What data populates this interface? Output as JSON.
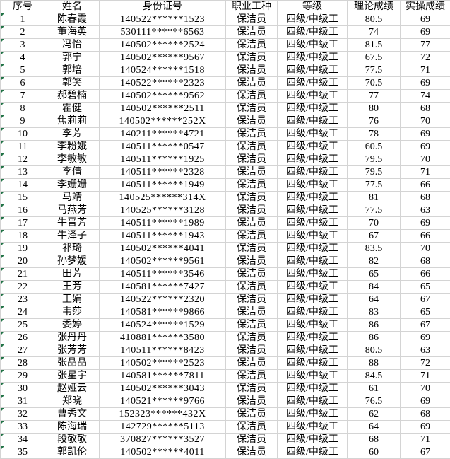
{
  "app": {
    "type": "spreadsheet-score-table",
    "description": "成绩表格"
  },
  "colors": {
    "grid": "#d4d4d4",
    "text": "#000000",
    "error_indicator": "#217346",
    "background": "#ffffff"
  },
  "icons": {
    "error_indicator": "number-stored-as-text-triangle"
  },
  "table": {
    "headers": [
      "序号",
      "姓名",
      "身份证号",
      "职业工种",
      "等级",
      "理论成绩",
      "实操成绩"
    ],
    "rows": [
      {
        "seq": "1",
        "name": "陈春霞",
        "id": "140522******1523",
        "job": "保洁员",
        "level": "四级/中级工",
        "theory": "80.5",
        "practical": "69",
        "flag": true
      },
      {
        "seq": "2",
        "name": "董海英",
        "id": "530111******6563",
        "job": "保洁员",
        "level": "四级/中级工",
        "theory": "74",
        "practical": "69",
        "flag": true
      },
      {
        "seq": "3",
        "name": "冯怡",
        "id": "140502******2524",
        "job": "保洁员",
        "level": "四级/中级工",
        "theory": "81.5",
        "practical": "77",
        "flag": true
      },
      {
        "seq": "4",
        "name": "郭宁",
        "id": "140502******9567",
        "job": "保洁员",
        "level": "四级/中级工",
        "theory": "67.5",
        "practical": "72",
        "flag": true
      },
      {
        "seq": "5",
        "name": "郭培",
        "id": "140524******1518",
        "job": "保洁员",
        "level": "四级/中级工",
        "theory": "77.5",
        "practical": "71",
        "flag": true
      },
      {
        "seq": "6",
        "name": "郭笑",
        "id": "140522******2323",
        "job": "保洁员",
        "level": "四级/中级工",
        "theory": "70.5",
        "practical": "69",
        "flag": true
      },
      {
        "seq": "7",
        "name": "郝碧楠",
        "id": "140502******9562",
        "job": "保洁员",
        "level": "四级/中级工",
        "theory": "77",
        "practical": "74",
        "flag": true
      },
      {
        "seq": "8",
        "name": "霍健",
        "id": "140502******2511",
        "job": "保洁员",
        "level": "四级/中级工",
        "theory": "80",
        "practical": "68",
        "flag": true
      },
      {
        "seq": "9",
        "name": "焦莉莉",
        "id": "140502******252X",
        "job": "保洁员",
        "level": "四级/中级工",
        "theory": "76",
        "practical": "70",
        "flag": true
      },
      {
        "seq": "10",
        "name": "李芳",
        "id": "140211******4721",
        "job": "保洁员",
        "level": "四级/中级工",
        "theory": "78",
        "practical": "69",
        "flag": true
      },
      {
        "seq": "11",
        "name": "李粉娥",
        "id": "140511******0547",
        "job": "保洁员",
        "level": "四级/中级工",
        "theory": "60.5",
        "practical": "69",
        "flag": true
      },
      {
        "seq": "12",
        "name": "李敏敏",
        "id": "140511******1925",
        "job": "保洁员",
        "level": "四级/中级工",
        "theory": "79.5",
        "practical": "70",
        "flag": true
      },
      {
        "seq": "13",
        "name": "李倩",
        "id": "140511******2328",
        "job": "保洁员",
        "level": "四级/中级工",
        "theory": "79.5",
        "practical": "71",
        "flag": true
      },
      {
        "seq": "14",
        "name": "李姗姗",
        "id": "140511******1949",
        "job": "保洁员",
        "level": "四级/中级工",
        "theory": "77.5",
        "practical": "66",
        "flag": true
      },
      {
        "seq": "15",
        "name": "马靖",
        "id": "140525******314X",
        "job": "保洁员",
        "level": "四级/中级工",
        "theory": "81",
        "practical": "68",
        "flag": true
      },
      {
        "seq": "16",
        "name": "马燕芳",
        "id": "140525******3128",
        "job": "保洁员",
        "level": "四级/中级工",
        "theory": "77.5",
        "practical": "63",
        "flag": true
      },
      {
        "seq": "17",
        "name": "牛晋芳",
        "id": "140511******1989",
        "job": "保洁员",
        "level": "四级/中级工",
        "theory": "70",
        "practical": "69",
        "flag": true
      },
      {
        "seq": "18",
        "name": "牛泽子",
        "id": "140511******1943",
        "job": "保洁员",
        "level": "四级/中级工",
        "theory": "67",
        "practical": "66",
        "flag": true
      },
      {
        "seq": "19",
        "name": "祁琦",
        "id": "140502******4041",
        "job": "保洁员",
        "level": "四级/中级工",
        "theory": "83.5",
        "practical": "70",
        "flag": true
      },
      {
        "seq": "20",
        "name": "孙梦媛",
        "id": "140502******9561",
        "job": "保洁员",
        "level": "四级/中级工",
        "theory": "82",
        "practical": "68",
        "flag": true
      },
      {
        "seq": "21",
        "name": "田芳",
        "id": "140511******3546",
        "job": "保洁员",
        "level": "四级/中级工",
        "theory": "65",
        "practical": "66",
        "flag": true
      },
      {
        "seq": "22",
        "name": "王芳",
        "id": "140581******7427",
        "job": "保洁员",
        "level": "四级/中级工",
        "theory": "84",
        "practical": "65",
        "flag": true
      },
      {
        "seq": "23",
        "name": "王娟",
        "id": "140522******2320",
        "job": "保洁员",
        "level": "四级/中级工",
        "theory": "64",
        "practical": "67",
        "flag": true
      },
      {
        "seq": "24",
        "name": "韦莎",
        "id": "140581******9866",
        "job": "保洁员",
        "level": "四级/中级工",
        "theory": "83",
        "practical": "65",
        "flag": true
      },
      {
        "seq": "25",
        "name": "委婷",
        "id": "140524******1529",
        "job": "保洁员",
        "level": "四级/中级工",
        "theory": "86",
        "practical": "67",
        "flag": true
      },
      {
        "seq": "26",
        "name": "张丹丹",
        "id": "410881******3580",
        "job": "保洁员",
        "level": "四级/中级工",
        "theory": "86",
        "practical": "69",
        "flag": true
      },
      {
        "seq": "27",
        "name": "张芳芳",
        "id": "140511******8423",
        "job": "保洁员",
        "level": "四级/中级工",
        "theory": "80.5",
        "practical": "63",
        "flag": true
      },
      {
        "seq": "28",
        "name": "张晶晶",
        "id": "140502******2523",
        "job": "保洁员",
        "level": "四级/中级工",
        "theory": "88",
        "practical": "72",
        "flag": true
      },
      {
        "seq": "29",
        "name": "张星宇",
        "id": "140581******7811",
        "job": "保洁员",
        "level": "四级/中级工",
        "theory": "84.5",
        "practical": "71",
        "flag": true
      },
      {
        "seq": "30",
        "name": "赵娅云",
        "id": "140502******3043",
        "job": "保洁员",
        "level": "四级/中级工",
        "theory": "61",
        "practical": "70",
        "flag": true
      },
      {
        "seq": "31",
        "name": "郑晓",
        "id": "140521******9766",
        "job": "保洁员",
        "level": "四级/中级工",
        "theory": "76.5",
        "practical": "69",
        "flag": true
      },
      {
        "seq": "32",
        "name": "曹秀文",
        "id": "152323******432X",
        "job": "保洁员",
        "level": "四级/中级工",
        "theory": "62",
        "practical": "68",
        "flag": true
      },
      {
        "seq": "33",
        "name": "陈海瑞",
        "id": "142729******5113",
        "job": "保洁员",
        "level": "四级/中级工",
        "theory": "64",
        "practical": "69",
        "flag": true
      },
      {
        "seq": "34",
        "name": "段敬敬",
        "id": "370827******3527",
        "job": "保洁员",
        "level": "四级/中级工",
        "theory": "68",
        "practical": "71",
        "flag": true
      },
      {
        "seq": "35",
        "name": "郭凯伦",
        "id": "140502******4011",
        "job": "保洁员",
        "level": "四级/中级工",
        "theory": "60",
        "practical": "67",
        "flag": true
      }
    ]
  }
}
